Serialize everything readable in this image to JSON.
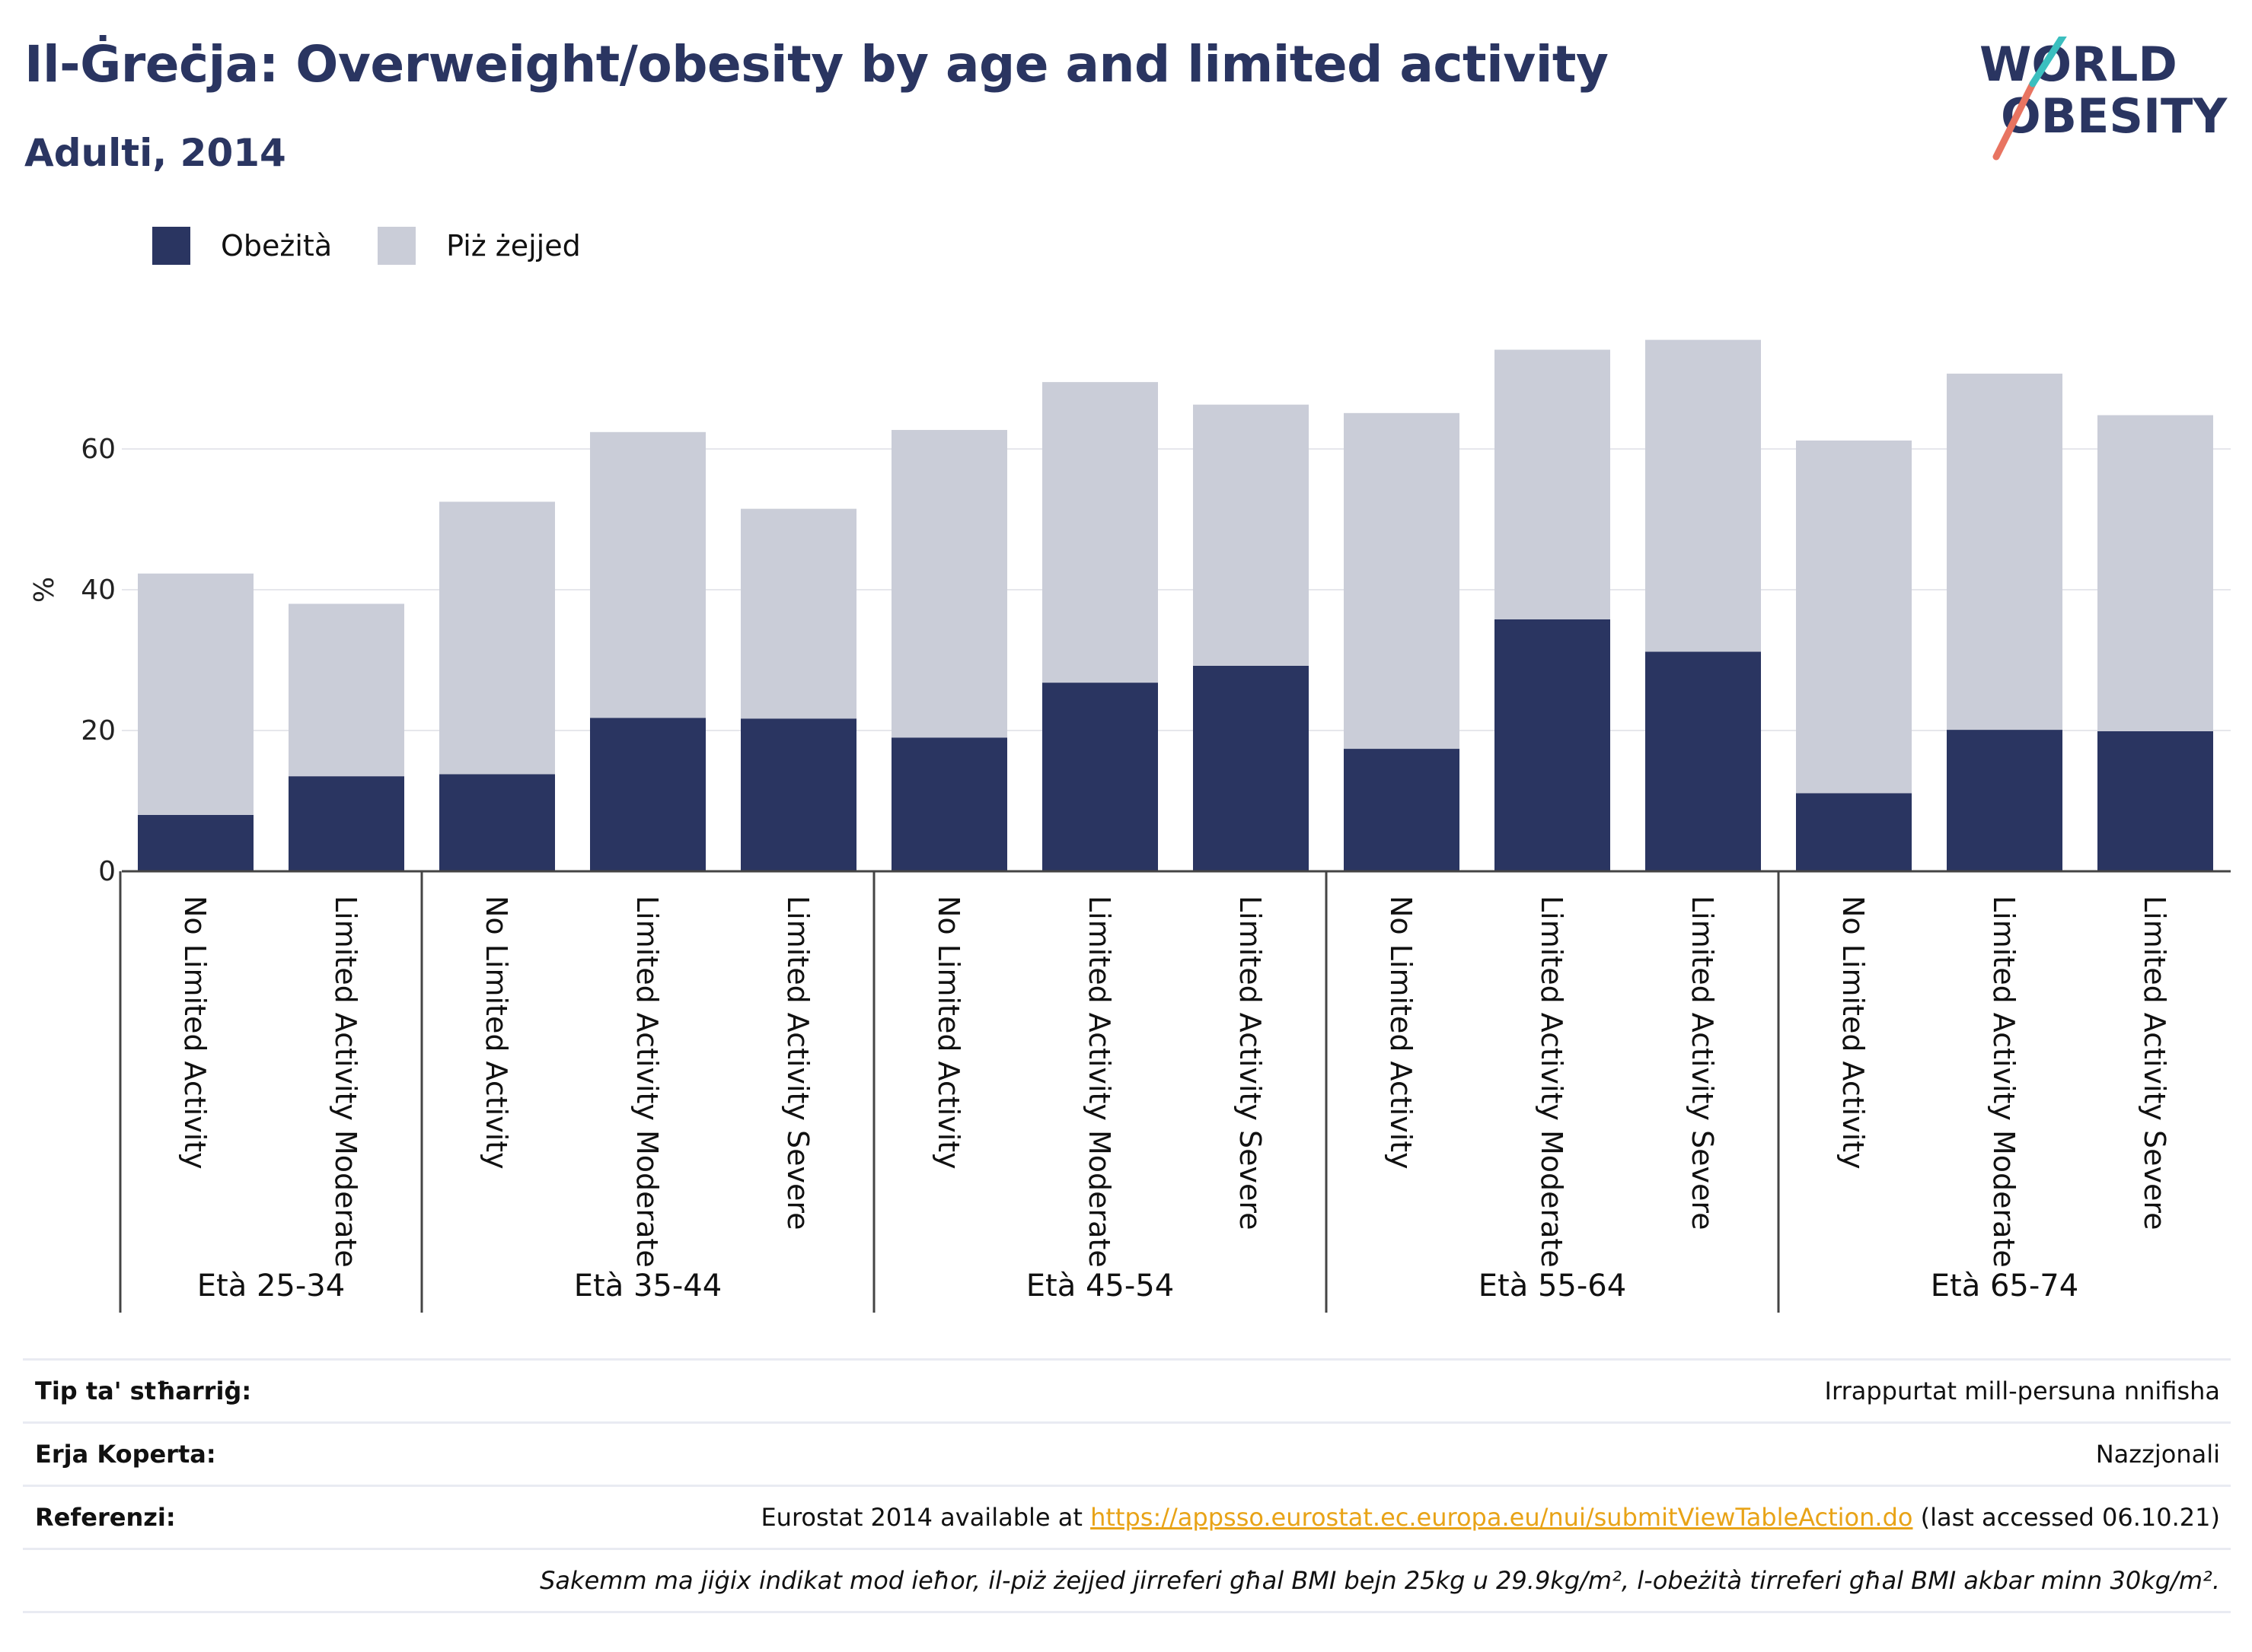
{
  "header": {
    "title": "Il-Ġreċja: Overweight/obesity by age and limited activity",
    "subtitle": "Adulti, 2014"
  },
  "logo": {
    "line1": "WORLD",
    "line2": "OBESITY"
  },
  "legend": [
    {
      "label": "Obeżità",
      "color": "#2a3561"
    },
    {
      "label": "Piż żejjed",
      "color": "#cacdd8"
    }
  ],
  "chart_data": {
    "type": "bar",
    "stacked": true,
    "ylabel": "%",
    "ylim": [
      0,
      80
    ],
    "yticks": [
      0,
      20,
      40,
      60
    ],
    "grid": true,
    "legend_position": "top-left",
    "groups": [
      {
        "label": "Età 25-34",
        "categories": [
          "No Limited Activity",
          "Limited Activity Moderate"
        ]
      },
      {
        "label": "Età 35-44",
        "categories": [
          "No Limited Activity",
          "Limited Activity Moderate",
          "Limited Activity Severe"
        ]
      },
      {
        "label": "Età 45-54",
        "categories": [
          "No Limited Activity",
          "Limited Activity Moderate",
          "Limited Activity Severe"
        ]
      },
      {
        "label": "Età 55-64",
        "categories": [
          "No Limited Activity",
          "Limited Activity Moderate",
          "Limited Activity Severe"
        ]
      },
      {
        "label": "Età 65-74",
        "categories": [
          "No Limited Activity",
          "Limited Activity Moderate",
          "Limited Activity Severe"
        ]
      }
    ],
    "series": [
      {
        "name": "Obeżità",
        "color": "#2a3561",
        "values": [
          8.0,
          13.5,
          13.8,
          21.8,
          21.7,
          19.0,
          26.8,
          29.2,
          17.4,
          35.8,
          31.2,
          11.1,
          20.1,
          19.9
        ]
      },
      {
        "name": "Piż żejjed",
        "color": "#cacdd8",
        "values": [
          34.3,
          24.5,
          38.7,
          40.6,
          29.8,
          43.7,
          42.7,
          37.1,
          47.7,
          38.3,
          44.3,
          50.1,
          50.6,
          44.9
        ]
      }
    ]
  },
  "info": {
    "rows": [
      {
        "key": "Tip ta' stħarriġ:",
        "value": "Irrappurtat mill-persuna nnifisha"
      },
      {
        "key": "Erja Koperta:",
        "value": "Nazzjonali"
      },
      {
        "key": "Referenzi:",
        "prefix": "Eurostat 2014 available at ",
        "link": "https://appsso.eurostat.ec.europa.eu/nui/submitViewTableAction.do",
        "suffix": " (last accessed 06.10.21)"
      }
    ],
    "note": "Sakemm ma jiġix indikat mod ieħor, il-piż żejjed jirreferi għal BMI bejn 25kg u 29.9kg/m², l-obeżità tirreferi għal BMI akbar minn 30kg/m²."
  }
}
